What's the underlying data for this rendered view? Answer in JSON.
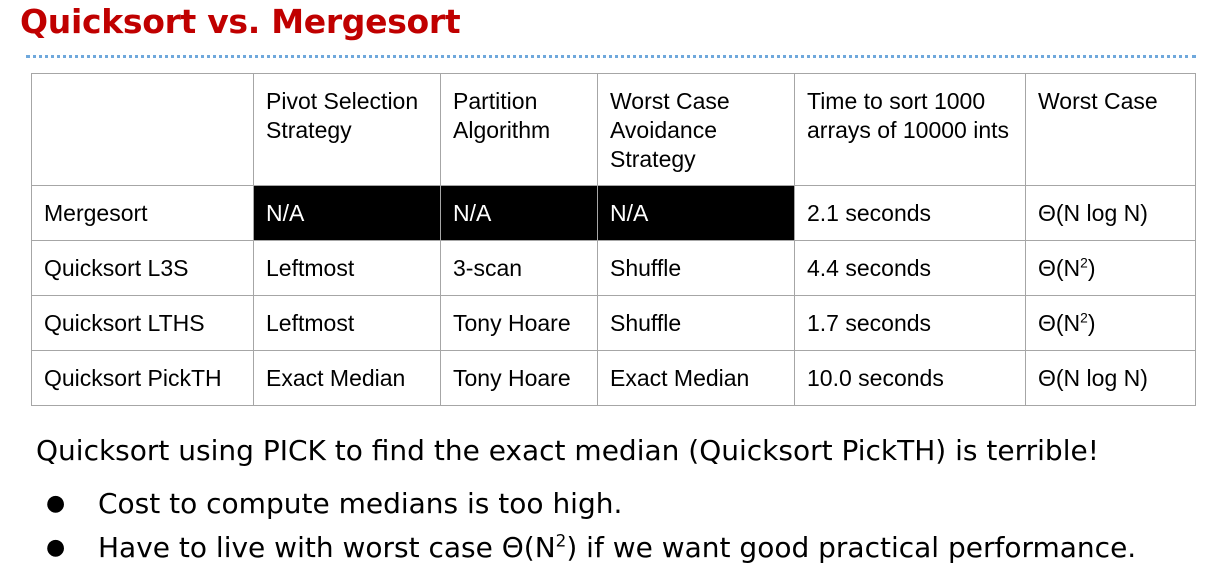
{
  "slide": {
    "title": "Quicksort vs. Mergesort",
    "title_color": "#c00000",
    "rule_color": "#6fa8dc"
  },
  "table": {
    "headers": [
      "",
      "Pivot Selection Strategy",
      "Partition Algorithm",
      "Worst Case Avoidance Strategy",
      "Time to sort 1000 arrays of 10000 ints",
      "Worst Case"
    ],
    "rows": [
      {
        "name": "Mergesort",
        "pivot": "N/A",
        "partition": "N/A",
        "avoidance": "N/A",
        "time": "2.1 seconds",
        "worst_base": "Θ(N log N)",
        "worst_exp": "",
        "worst_tail": ""
      },
      {
        "name": "Quicksort L3S",
        "pivot": "Leftmost",
        "partition": "3-scan",
        "avoidance": "Shuffle",
        "time": "4.4 seconds",
        "worst_base": "Θ(N",
        "worst_exp": "2",
        "worst_tail": ")"
      },
      {
        "name": "Quicksort LTHS",
        "pivot": "Leftmost",
        "partition": "Tony Hoare",
        "avoidance": "Shuffle",
        "time": "1.7 seconds",
        "worst_base": "Θ(N",
        "worst_exp": "2",
        "worst_tail": ")"
      },
      {
        "name": "Quicksort PickTH",
        "pivot": "Exact Median",
        "partition": "Tony Hoare",
        "avoidance": "Exact Median",
        "time": "10.0 seconds",
        "worst_base": "Θ(N log N)",
        "worst_exp": "",
        "worst_tail": ""
      }
    ],
    "highlight_fill": "#000000"
  },
  "notes": {
    "summary": "Quicksort using PICK to find the exact median (Quicksort PickTH) is terrible!",
    "bullet_symbol": "●",
    "bullet1": "Cost to compute medians is too high.",
    "bullet2_pre": "Have to live with worst case Θ(N",
    "bullet2_exp": "2",
    "bullet2_post": ") if we want good practical performance."
  }
}
